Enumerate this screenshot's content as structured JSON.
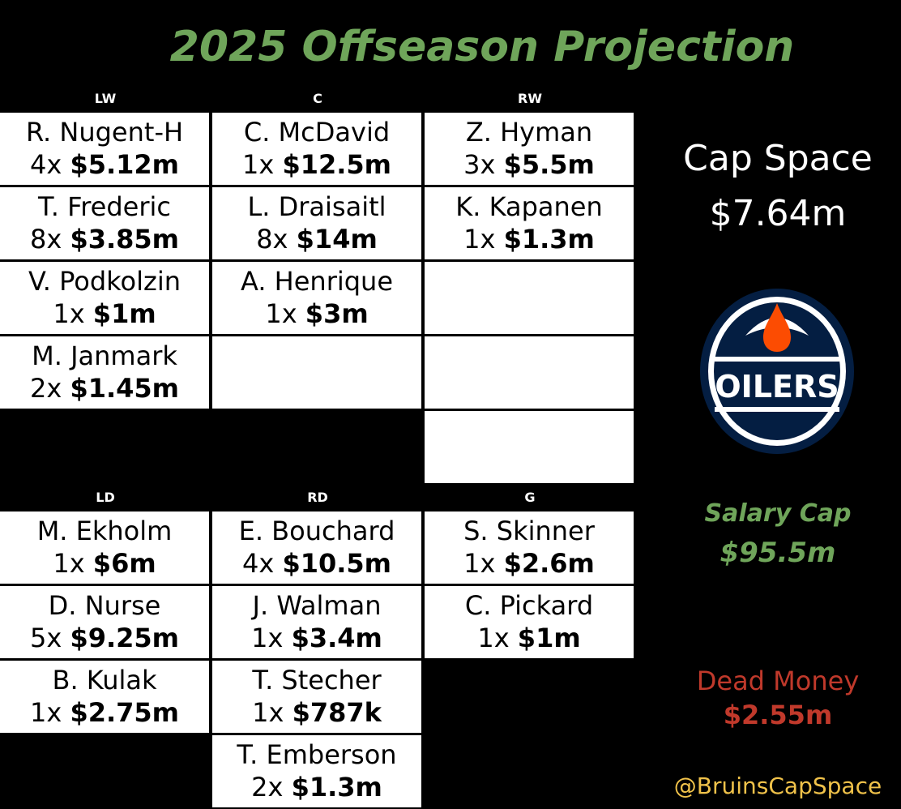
{
  "title": "2025 Offseason Projection",
  "headers": {
    "lw": "LW",
    "c": "C",
    "rw": "RW",
    "ld": "LD",
    "rd": "RD",
    "g": "G"
  },
  "forwards": {
    "lw": [
      {
        "name": "R. Nugent-H",
        "years": "4x",
        "cap": "$5.12m"
      },
      {
        "name": "T. Frederic",
        "years": "8x",
        "cap": "$3.85m"
      },
      {
        "name": "V. Podkolzin",
        "years": "1x",
        "cap": "$1m"
      },
      {
        "name": "M. Janmark",
        "years": "2x",
        "cap": "$1.45m"
      }
    ],
    "c": [
      {
        "name": "C. McDavid",
        "years": "1x",
        "cap": "$12.5m"
      },
      {
        "name": "L. Draisaitl",
        "years": "8x",
        "cap": "$14m"
      },
      {
        "name": "A. Henrique",
        "years": "1x",
        "cap": "$3m"
      }
    ],
    "rw": [
      {
        "name": "Z. Hyman",
        "years": "3x",
        "cap": "$5.5m"
      },
      {
        "name": "K. Kapanen",
        "years": "1x",
        "cap": "$1.3m"
      }
    ]
  },
  "defense": {
    "ld": [
      {
        "name": "M. Ekholm",
        "years": "1x",
        "cap": "$6m"
      },
      {
        "name": "D. Nurse",
        "years": "5x",
        "cap": "$9.25m"
      },
      {
        "name": "B. Kulak",
        "years": "1x",
        "cap": "$2.75m"
      }
    ],
    "rd": [
      {
        "name": "E. Bouchard",
        "years": "4x",
        "cap": "$10.5m"
      },
      {
        "name": "J. Walman",
        "years": "1x",
        "cap": "$3.4m"
      },
      {
        "name": "T. Stecher",
        "years": "1x",
        "cap": "$787k"
      },
      {
        "name": "T. Emberson",
        "years": "2x",
        "cap": "$1.3m"
      }
    ]
  },
  "goalies": {
    "g": [
      {
        "name": "S. Skinner",
        "years": "1x",
        "cap": "$2.6m"
      },
      {
        "name": "C. Pickard",
        "years": "1x",
        "cap": "$1m"
      }
    ]
  },
  "summary": {
    "cap_space_label": "Cap Space",
    "cap_space_value": "$7.64m",
    "logo_text": "OILERS",
    "salary_cap_label": "Salary Cap",
    "salary_cap_value": "$95.5m",
    "dead_money_label": "Dead Money",
    "dead_money_value": "$2.55m",
    "handle": "@BruinsCapSpace"
  },
  "colors": {
    "accent_green": "#6fa55a",
    "dead_red": "#c0392b",
    "handle_gold": "#f0c24a",
    "oilers_navy": "#041e42",
    "oilers_orange": "#fc4c02"
  }
}
